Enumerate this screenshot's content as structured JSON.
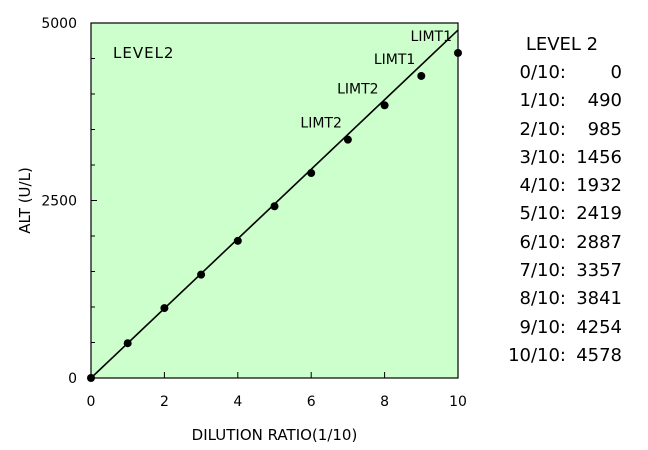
{
  "chart_data": {
    "type": "scatter",
    "title": "",
    "panel_label": "LEVEL2",
    "xlabel": "DILUTION RATIO(1/10)",
    "ylabel": "ALT (U/L)",
    "xlim": [
      0,
      10
    ],
    "ylim": [
      0,
      5000
    ],
    "x_ticks": [
      0,
      2,
      4,
      6,
      8,
      10
    ],
    "y_ticks": [
      0,
      2500,
      5000
    ],
    "y_minor_ticks": [
      500,
      1000,
      1500,
      2000,
      3000,
      3500,
      4000,
      4500
    ],
    "grid": false,
    "background_color": "#ccffcc",
    "point_color": "#000000",
    "fit_line": {
      "from": [
        0,
        0
      ],
      "to": [
        10,
        4900
      ]
    },
    "x": [
      0,
      1,
      2,
      3,
      4,
      5,
      6,
      7,
      8,
      9,
      10
    ],
    "y": [
      0,
      490,
      985,
      1456,
      1932,
      2419,
      2887,
      3357,
      3841,
      4254,
      4578
    ],
    "annotations": [
      {
        "text": "LIMT2",
        "x": 7,
        "y": 3357
      },
      {
        "text": "LIMT2",
        "x": 8,
        "y": 3841
      },
      {
        "text": "LIMT1",
        "x": 9,
        "y": 4254
      },
      {
        "text": "LIMT1",
        "x": 10,
        "y": 4578
      }
    ]
  },
  "table": {
    "title": "LEVEL 2",
    "rows": [
      {
        "ratio": "0/10:",
        "value": "0"
      },
      {
        "ratio": "1/10:",
        "value": "490"
      },
      {
        "ratio": "2/10:",
        "value": "985"
      },
      {
        "ratio": "3/10:",
        "value": "1456"
      },
      {
        "ratio": "4/10:",
        "value": "1932"
      },
      {
        "ratio": "5/10:",
        "value": "2419"
      },
      {
        "ratio": "6/10:",
        "value": "2887"
      },
      {
        "ratio": "7/10:",
        "value": "3357"
      },
      {
        "ratio": "8/10:",
        "value": "3841"
      },
      {
        "ratio": "9/10:",
        "value": "4254"
      },
      {
        "ratio": "10/10:",
        "value": "4578"
      }
    ]
  }
}
